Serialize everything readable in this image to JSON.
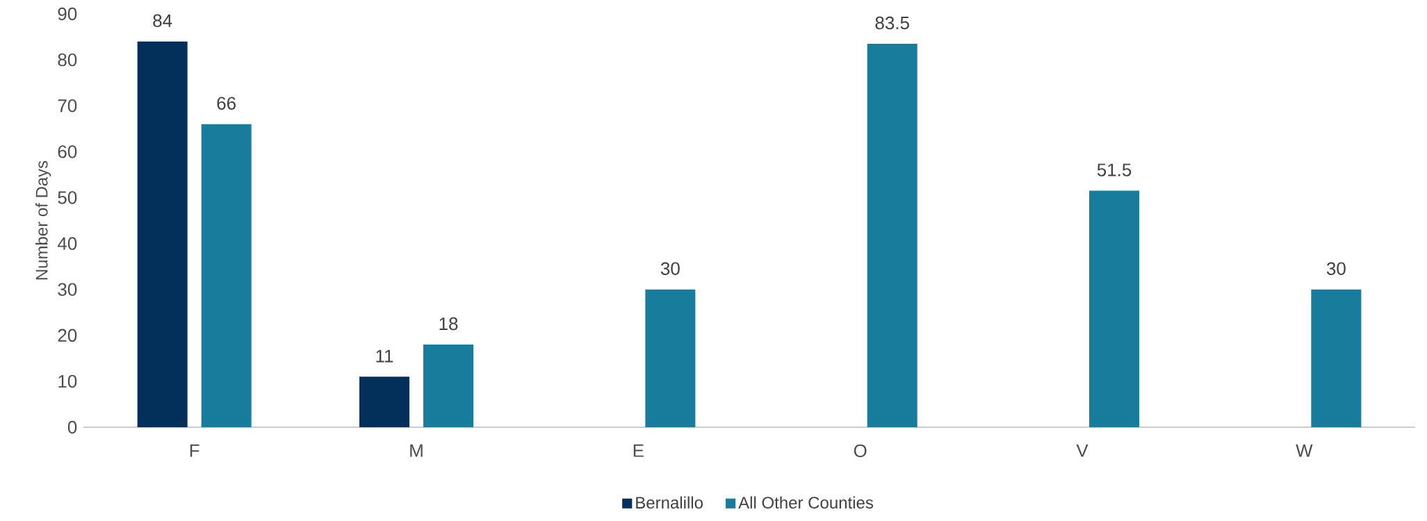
{
  "chart_data": {
    "type": "bar",
    "ylabel": "Number of Days",
    "categories": [
      "F",
      "M",
      "E",
      "O",
      "V",
      "W"
    ],
    "series": [
      {
        "name": "Bernalillo",
        "color": "#03305a",
        "values": [
          84,
          11,
          null,
          null,
          null,
          null
        ]
      },
      {
        "name": "All Other Counties",
        "color": "#187c9c",
        "values": [
          66,
          18,
          30,
          83.5,
          51.5,
          30
        ]
      }
    ],
    "ylim": [
      0,
      90
    ],
    "yticks": [
      0,
      10,
      20,
      30,
      40,
      50,
      60,
      70,
      80,
      90
    ],
    "data_labels": true,
    "legend": "bottom"
  }
}
